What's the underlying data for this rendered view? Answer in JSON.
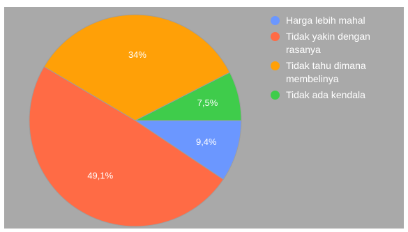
{
  "chart_data": {
    "type": "pie",
    "title": "",
    "slices": [
      {
        "label": "Harga lebih mahal",
        "value": 9.4,
        "value_label": "9,4%",
        "color": "#6b97ff"
      },
      {
        "label": "Tidak yakin dengan rasanya",
        "value": 49.1,
        "value_label": "49,1%",
        "color": "#ff6b45"
      },
      {
        "label": "Tidak tahu dimana membelinya",
        "value": 34,
        "value_label": "34%",
        "color": "#ffa007"
      },
      {
        "label": "Tidak ada kendala",
        "value": 7.5,
        "value_label": "7,5%",
        "color": "#3fcc4b"
      }
    ],
    "legend_position": "right",
    "background": "#a9a9a9"
  }
}
